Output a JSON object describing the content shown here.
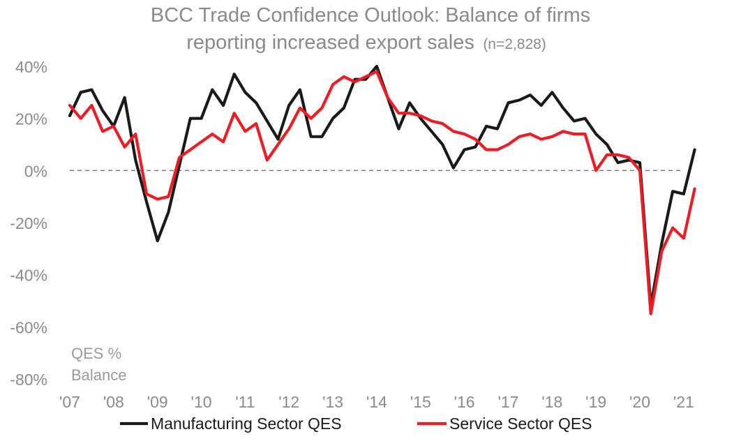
{
  "chart_data": {
    "type": "line",
    "title_line1": "BCC Trade Confidence Outlook: Balance of firms",
    "title_line2": "reporting increased export sales",
    "title_note": "(n=2,828)",
    "ylabel_line1": "QES %",
    "ylabel_line2": "Balance",
    "xlabel": "",
    "ylim": [
      -80,
      40
    ],
    "yticks": [
      40,
      20,
      0,
      -20,
      -40,
      -60,
      -80
    ],
    "ytick_labels": [
      "40%",
      "20%",
      "0%",
      "-20%",
      "-40%",
      "-60%",
      "-80%"
    ],
    "xlim": [
      2007,
      2021.4
    ],
    "xticks": [
      2007,
      2008,
      2009,
      2010,
      2011,
      2012,
      2013,
      2014,
      2015,
      2016,
      2017,
      2018,
      2019,
      2020,
      2021
    ],
    "xtick_labels": [
      "'07",
      "'08",
      "'09",
      "'10",
      "'11",
      "'12",
      "'13",
      "'14",
      "'15",
      "'16",
      "'17",
      "'18",
      "'19",
      "'20",
      "'21"
    ],
    "zero_line": "dashed",
    "grid": false,
    "legend_position": "bottom",
    "x": [
      2007.0,
      2007.25,
      2007.5,
      2007.75,
      2008.0,
      2008.25,
      2008.5,
      2008.75,
      2009.0,
      2009.25,
      2009.5,
      2009.75,
      2010.0,
      2010.25,
      2010.5,
      2010.75,
      2011.0,
      2011.25,
      2011.5,
      2011.75,
      2012.0,
      2012.25,
      2012.5,
      2012.75,
      2013.0,
      2013.25,
      2013.5,
      2013.75,
      2014.0,
      2014.25,
      2014.5,
      2014.75,
      2015.0,
      2015.25,
      2015.5,
      2015.75,
      2016.0,
      2016.25,
      2016.5,
      2016.75,
      2017.0,
      2017.25,
      2017.5,
      2017.75,
      2018.0,
      2018.25,
      2018.5,
      2018.75,
      2019.0,
      2019.25,
      2019.5,
      2019.75,
      2020.0,
      2020.25,
      2020.5,
      2020.75,
      2021.0,
      2021.25
    ],
    "series": [
      {
        "name": "Manufacturing Sector QES",
        "color": "#1a1a1a",
        "values": [
          21,
          30,
          31,
          23,
          17,
          28,
          4,
          -12,
          -27,
          -16,
          2,
          20,
          20,
          31,
          25,
          37,
          30,
          26,
          19,
          12,
          25,
          31,
          13,
          13,
          20,
          24,
          35,
          35,
          40,
          28,
          16,
          26,
          20,
          15,
          10,
          1,
          8,
          9,
          17,
          16,
          26,
          27,
          29,
          25,
          30,
          24,
          19,
          20,
          14,
          10,
          3,
          4,
          3,
          -52,
          -28,
          -8,
          -9,
          8
        ]
      },
      {
        "name": "Service Sector QES",
        "color": "#ee1c24",
        "values": [
          25,
          20,
          25,
          15,
          17,
          9,
          14,
          -9,
          -11,
          -10,
          5,
          8,
          11,
          14,
          11,
          22,
          15,
          18,
          4,
          10,
          16,
          24,
          20,
          24,
          33,
          36,
          34,
          36,
          38,
          28,
          22,
          22,
          21,
          19,
          18,
          15,
          14,
          12,
          8,
          8,
          10,
          13,
          14,
          12,
          13,
          15,
          14,
          14,
          0,
          6,
          6,
          5,
          0,
          -55,
          -31,
          -22,
          -26,
          -7
        ]
      }
    ]
  }
}
